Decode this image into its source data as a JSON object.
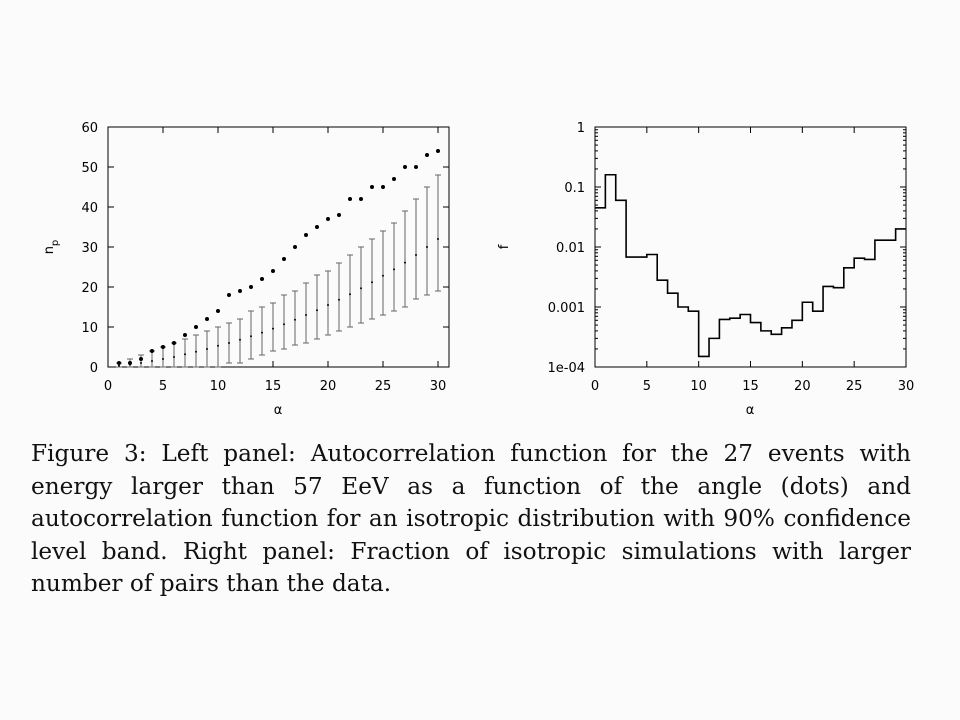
{
  "chart_data": [
    {
      "type": "scatter",
      "panel": "left",
      "xlabel": "α",
      "ylabel_main": "n",
      "ylabel_sub": "p",
      "xlim": [
        0,
        31
      ],
      "ylim": [
        0,
        60
      ],
      "xticks": [
        "0",
        "5",
        "10",
        "15",
        "20",
        "25",
        "30"
      ],
      "yticks": [
        "0",
        "10",
        "20",
        "30",
        "40",
        "50",
        "60"
      ],
      "series": [
        {
          "name": "",
          "kind": "dots",
          "x": [
            1,
            2,
            3,
            4,
            5,
            6,
            7,
            8,
            9,
            10,
            11,
            12,
            13,
            14,
            15,
            16,
            17,
            18,
            19,
            20,
            21,
            22,
            23,
            24,
            25,
            26,
            27,
            28,
            29,
            30
          ],
          "y": [
            1,
            1,
            2,
            4,
            5,
            6,
            8,
            10,
            12,
            14,
            18,
            19,
            20,
            22,
            24,
            27,
            30,
            33,
            35,
            37,
            38,
            42,
            42,
            45,
            45,
            47,
            50,
            50,
            53,
            54
          ]
        },
        {
          "name": "",
          "kind": "errorbars",
          "x": [
            1,
            2,
            3,
            4,
            5,
            6,
            7,
            8,
            9,
            10,
            11,
            12,
            13,
            14,
            15,
            16,
            17,
            18,
            19,
            20,
            21,
            22,
            23,
            24,
            25,
            26,
            27,
            28,
            29,
            30
          ],
          "y": [
            0.3,
            0.6,
            1,
            1.5,
            2,
            2.5,
            3.2,
            3.8,
            4.5,
            5.3,
            6,
            6.8,
            7.7,
            8.6,
            9.6,
            10.7,
            11.8,
            13,
            14.2,
            15.5,
            16.8,
            18.2,
            19.7,
            21.2,
            22.8,
            24.4,
            26.1,
            28,
            30,
            32
          ],
          "ylow": [
            0,
            0,
            0,
            0,
            0,
            0,
            0,
            0,
            0,
            0,
            1,
            1,
            2,
            3,
            4,
            4.5,
            5.5,
            6,
            7,
            8,
            9,
            10,
            11,
            12,
            13,
            14,
            15,
            17,
            18,
            19
          ],
          "yhigh": [
            1,
            2,
            3,
            4,
            5,
            6,
            7,
            8,
            9,
            10,
            11,
            12,
            14,
            15,
            16,
            18,
            19,
            21,
            23,
            24,
            26,
            28,
            30,
            32,
            34,
            36,
            39,
            42,
            45,
            48
          ]
        }
      ]
    },
    {
      "type": "line",
      "panel": "right",
      "style": "step",
      "xlabel": "α",
      "ylabel": "f",
      "xlim": [
        0,
        30
      ],
      "ylim": [
        0.0001,
        1
      ],
      "yscale": "log",
      "xticks": [
        "0",
        "5",
        "10",
        "15",
        "20",
        "25",
        "30"
      ],
      "yticks": [
        "1e-04",
        "0.001",
        "0.01",
        "0.1",
        "1"
      ],
      "series": [
        {
          "name": "",
          "bins": [
            0,
            1,
            2,
            3,
            4,
            5,
            6,
            7,
            8,
            9,
            10,
            11,
            12,
            13,
            14,
            15,
            16,
            17,
            18,
            19,
            20,
            21,
            22,
            23,
            24,
            25,
            26,
            27,
            28,
            29,
            30
          ],
          "values": [
            0.045,
            0.16,
            0.06,
            0.0068,
            0.0068,
            0.0075,
            0.0028,
            0.0017,
            0.001,
            0.00085,
            0.00015,
            0.0003,
            0.00062,
            0.00065,
            0.00075,
            0.00055,
            0.0004,
            0.00035,
            0.00045,
            0.0006,
            0.0012,
            0.00085,
            0.0022,
            0.0021,
            0.0045,
            0.0065,
            0.0062,
            0.013,
            0.013,
            0.02
          ]
        }
      ]
    }
  ],
  "caption": "Figure 3: Left panel: Autocorrelation function for the 27 events with energy larger than 57 EeV as a function of the angle (dots) and autocorrelation function for an isotropic distribution with 90% confidence level band. Right panel: Fraction of isotropic simulations with larger number of pairs than the data."
}
